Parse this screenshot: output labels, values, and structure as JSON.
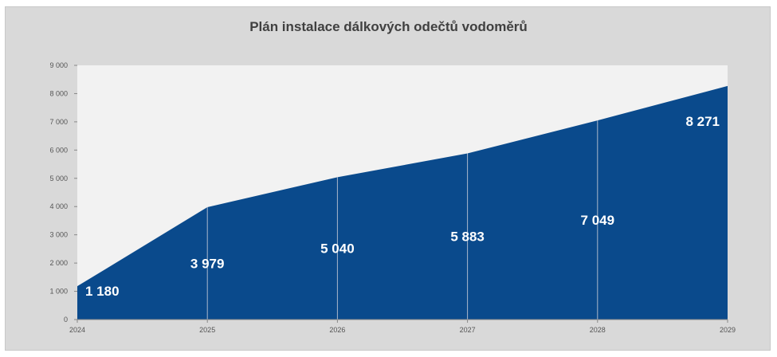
{
  "chart_data": {
    "type": "area",
    "title": "Plán instalace dálkových odečtů vodoměrů",
    "x": [
      "2024",
      "2025",
      "2026",
      "2027",
      "2028",
      "2029"
    ],
    "series": [
      {
        "values": [
          1180,
          3979,
          5040,
          5883,
          7049,
          8271
        ],
        "labels": [
          "1 180",
          "3 979",
          "5 040",
          "5 883",
          "7 049",
          "8 271"
        ]
      }
    ],
    "yticks": [
      "0",
      "1 000",
      "2 000",
      "3 000",
      "4 000",
      "5 000",
      "6 000",
      "7 000",
      "8 000",
      "9 000"
    ],
    "ylim": [
      0,
      9000
    ],
    "grid": false,
    "legend": "none",
    "colors": {
      "area": "#0a4a8c",
      "plot_bg": "#f2f2f2",
      "frame_bg": "#d9d9d9",
      "divider": "#aab8cc",
      "label": "#ffffff"
    }
  }
}
